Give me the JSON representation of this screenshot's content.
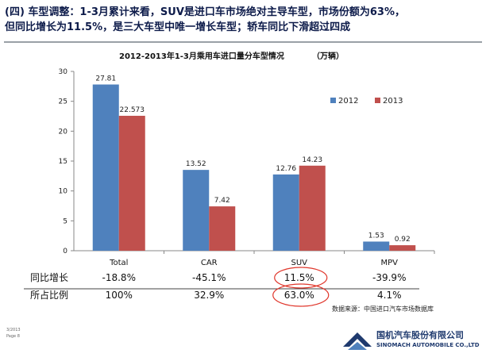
{
  "headline": {
    "line1": "(四) 车型调整：1-3月累计来看，SUV是进口车市场绝对主导车型，市场份额为63%，",
    "line2": "但同比增长为11.5%，是三大车型中唯一增长车型；轿车同比下滑超过四成"
  },
  "chart_title": "2012-2013年1-3月乘用车进口量分车型情况",
  "chart_unit": "（万辆）",
  "chart_data": {
    "type": "bar",
    "title": "2012-2013年1-3月乘用车进口量分车型情况",
    "unit": "（万辆）",
    "categories": [
      "Total",
      "CAR",
      "SUV",
      "MPV"
    ],
    "series": [
      {
        "name": "2012",
        "color": "#4f81bd",
        "values": [
          27.81,
          13.52,
          12.76,
          1.53
        ],
        "labels": [
          "27.81",
          "13.52",
          "12.76",
          "1.53"
        ]
      },
      {
        "name": "2013",
        "color": "#c0504d",
        "values": [
          22.573,
          7.42,
          14.23,
          0.92
        ],
        "labels": [
          "22.573",
          "7.42",
          "14.23",
          "0.92"
        ]
      }
    ],
    "ylim": [
      0,
      30
    ],
    "yticks": [
      "0",
      "5",
      "10",
      "15",
      "20",
      "25",
      "30"
    ],
    "legend_position": "top-right",
    "grid": false
  },
  "table": {
    "rows": [
      {
        "label": "同比增长",
        "values": [
          "-18.8%",
          "-45.1%",
          "11.5%",
          "-39.9%"
        ]
      },
      {
        "label": "所占比例",
        "values": [
          "100%",
          "32.9%",
          "63.0%",
          "4.1%"
        ]
      }
    ]
  },
  "source": "数据来源：中国进口汽车市场数据库",
  "footer": {
    "date": "3/2013",
    "page": "Page 8"
  },
  "brand": {
    "name_cn": "国机汽车股份有限公司",
    "name_en": "SINOMACH AUTOMOBILE CO.,LTD"
  },
  "colors": {
    "highlight_circle": "#e0362b",
    "brand": "#1f3a6e"
  }
}
